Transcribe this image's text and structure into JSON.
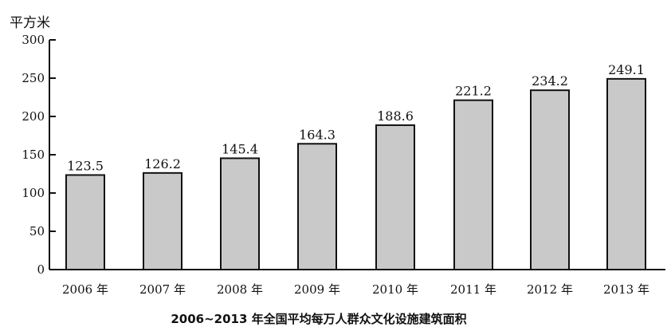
{
  "chart_data": {
    "type": "bar",
    "title": "2006~2013 年全国平均每万人群众文化设施建筑面积",
    "ylabel": "平方米",
    "xlabel": "",
    "ylim": [
      0,
      300
    ],
    "yticks": [
      "0",
      "50",
      "100",
      "150",
      "200",
      "250",
      "300"
    ],
    "categories": [
      "2006 年",
      "2007 年",
      "2008 年",
      "2009 年",
      "2010 年",
      "2011 年",
      "2012 年",
      "2013 年"
    ],
    "values": [
      123.5,
      126.2,
      145.4,
      164.3,
      188.6,
      221.2,
      234.2,
      249.1
    ],
    "value_labels": [
      "123.5",
      "126.2",
      "145.4",
      "164.3",
      "188.6",
      "221.2",
      "234.2",
      "249.1"
    ],
    "grid": false,
    "bar_color": "#c9c9c9"
  }
}
